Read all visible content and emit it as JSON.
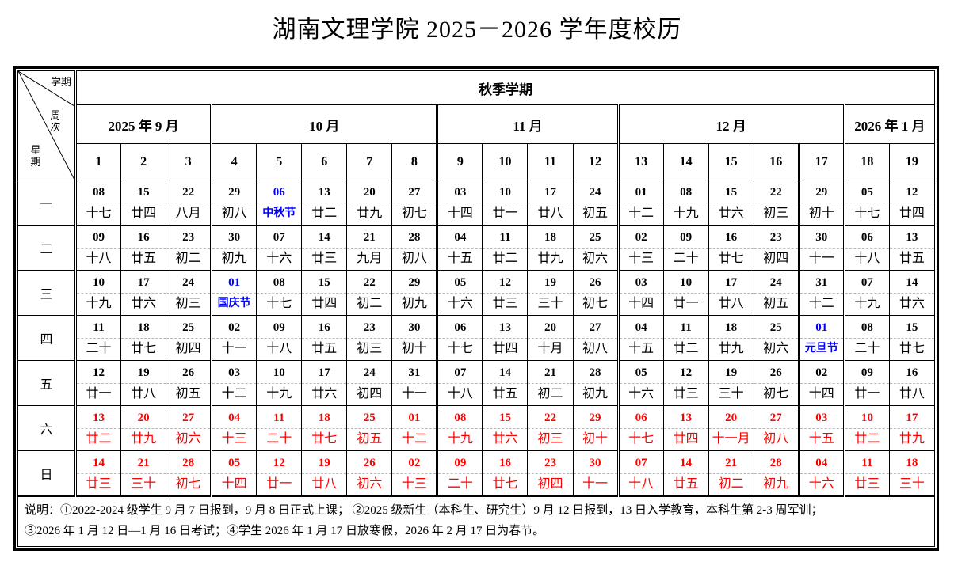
{
  "page": {
    "title": "湖南文理学院 2025－2026 学年度校历"
  },
  "colors": {
    "holiday_blue": "#0000ff",
    "weekend_red": "#ff0000",
    "ink": "#000000"
  },
  "table": {
    "corner": {
      "semester": "学期",
      "week": "周次",
      "weekday": "星期"
    },
    "semester_header": "秋季学期",
    "months": [
      {
        "label": "2025 年 9 月",
        "span": 3
      },
      {
        "label": "10 月",
        "span": 5
      },
      {
        "label": "11 月",
        "span": 4
      },
      {
        "label": "12 月",
        "span": 5
      },
      {
        "label": "2026 年 1 月",
        "span": 2
      }
    ],
    "weeks": [
      "1",
      "2",
      "3",
      "4",
      "5",
      "6",
      "7",
      "8",
      "9",
      "10",
      "11",
      "12",
      "13",
      "14",
      "15",
      "16",
      "17",
      "18",
      "19"
    ],
    "double_border_before_weeks": [
      1,
      4,
      9,
      13,
      17,
      18
    ],
    "day_rows": [
      {
        "label": "一",
        "weekend": false,
        "cells": [
          [
            "08",
            "十七"
          ],
          [
            "15",
            "廿四"
          ],
          [
            "22",
            "八月"
          ],
          [
            "29",
            "初八"
          ],
          [
            "06",
            "中秋节",
            "h"
          ],
          [
            "13",
            "廿二"
          ],
          [
            "20",
            "廿九"
          ],
          [
            "27",
            "初七"
          ],
          [
            "03",
            "十四"
          ],
          [
            "10",
            "廿一"
          ],
          [
            "17",
            "廿八"
          ],
          [
            "24",
            "初五"
          ],
          [
            "01",
            "十二"
          ],
          [
            "08",
            "十九"
          ],
          [
            "15",
            "廿六"
          ],
          [
            "22",
            "初三"
          ],
          [
            "29",
            "初十"
          ],
          [
            "05",
            "十七"
          ],
          [
            "12",
            "廿四"
          ]
        ]
      },
      {
        "label": "二",
        "weekend": false,
        "cells": [
          [
            "09",
            "十八"
          ],
          [
            "16",
            "廿五"
          ],
          [
            "23",
            "初二"
          ],
          [
            "30",
            "初九"
          ],
          [
            "07",
            "十六"
          ],
          [
            "14",
            "廿三"
          ],
          [
            "21",
            "九月"
          ],
          [
            "28",
            "初八"
          ],
          [
            "04",
            "十五"
          ],
          [
            "11",
            "廿二"
          ],
          [
            "18",
            "廿九"
          ],
          [
            "25",
            "初六"
          ],
          [
            "02",
            "十三"
          ],
          [
            "09",
            "二十"
          ],
          [
            "16",
            "廿七"
          ],
          [
            "23",
            "初四"
          ],
          [
            "30",
            "十一"
          ],
          [
            "06",
            "十八"
          ],
          [
            "13",
            "廿五"
          ]
        ]
      },
      {
        "label": "三",
        "weekend": false,
        "cells": [
          [
            "10",
            "十九"
          ],
          [
            "17",
            "廿六"
          ],
          [
            "24",
            "初三"
          ],
          [
            "01",
            "国庆节",
            "h"
          ],
          [
            "08",
            "十七"
          ],
          [
            "15",
            "廿四"
          ],
          [
            "22",
            "初二"
          ],
          [
            "29",
            "初九"
          ],
          [
            "05",
            "十六"
          ],
          [
            "12",
            "廿三"
          ],
          [
            "19",
            "三十"
          ],
          [
            "26",
            "初七"
          ],
          [
            "03",
            "十四"
          ],
          [
            "10",
            "廿一"
          ],
          [
            "17",
            "廿八"
          ],
          [
            "24",
            "初五"
          ],
          [
            "31",
            "十二"
          ],
          [
            "07",
            "十九"
          ],
          [
            "14",
            "廿六"
          ]
        ]
      },
      {
        "label": "四",
        "weekend": false,
        "cells": [
          [
            "11",
            "二十"
          ],
          [
            "18",
            "廿七"
          ],
          [
            "25",
            "初四"
          ],
          [
            "02",
            "十一"
          ],
          [
            "09",
            "十八"
          ],
          [
            "16",
            "廿五"
          ],
          [
            "23",
            "初三"
          ],
          [
            "30",
            "初十"
          ],
          [
            "06",
            "十七"
          ],
          [
            "13",
            "廿四"
          ],
          [
            "20",
            "十月"
          ],
          [
            "27",
            "初八"
          ],
          [
            "04",
            "十五"
          ],
          [
            "11",
            "廿二"
          ],
          [
            "18",
            "廿九"
          ],
          [
            "25",
            "初六"
          ],
          [
            "01",
            "元旦节",
            "h"
          ],
          [
            "08",
            "二十"
          ],
          [
            "15",
            "廿七"
          ]
        ]
      },
      {
        "label": "五",
        "weekend": false,
        "cells": [
          [
            "12",
            "廿一"
          ],
          [
            "19",
            "廿八"
          ],
          [
            "26",
            "初五"
          ],
          [
            "03",
            "十二"
          ],
          [
            "10",
            "十九"
          ],
          [
            "17",
            "廿六"
          ],
          [
            "24",
            "初四"
          ],
          [
            "31",
            "十一"
          ],
          [
            "07",
            "十八"
          ],
          [
            "14",
            "廿五"
          ],
          [
            "21",
            "初二"
          ],
          [
            "28",
            "初九"
          ],
          [
            "05",
            "十六"
          ],
          [
            "12",
            "廿三"
          ],
          [
            "19",
            "三十"
          ],
          [
            "26",
            "初七"
          ],
          [
            "02",
            "十四"
          ],
          [
            "09",
            "廿一"
          ],
          [
            "16",
            "廿八"
          ]
        ]
      },
      {
        "label": "六",
        "weekend": true,
        "cells": [
          [
            "13",
            "廿二"
          ],
          [
            "20",
            "廿九"
          ],
          [
            "27",
            "初六"
          ],
          [
            "04",
            "十三"
          ],
          [
            "11",
            "二十"
          ],
          [
            "18",
            "廿七"
          ],
          [
            "25",
            "初五"
          ],
          [
            "01",
            "十二"
          ],
          [
            "08",
            "十九"
          ],
          [
            "15",
            "廿六"
          ],
          [
            "22",
            "初三"
          ],
          [
            "29",
            "初十"
          ],
          [
            "06",
            "十七"
          ],
          [
            "13",
            "廿四"
          ],
          [
            "20",
            "十一月"
          ],
          [
            "27",
            "初八"
          ],
          [
            "03",
            "十五"
          ],
          [
            "10",
            "廿二"
          ],
          [
            "17",
            "廿九"
          ]
        ]
      },
      {
        "label": "日",
        "weekend": true,
        "cells": [
          [
            "14",
            "廿三"
          ],
          [
            "21",
            "三十"
          ],
          [
            "28",
            "初七"
          ],
          [
            "05",
            "十四"
          ],
          [
            "12",
            "廿一"
          ],
          [
            "19",
            "廿八"
          ],
          [
            "26",
            "初六"
          ],
          [
            "02",
            "十三"
          ],
          [
            "09",
            "二十"
          ],
          [
            "16",
            "廿七"
          ],
          [
            "23",
            "初四"
          ],
          [
            "30",
            "十一"
          ],
          [
            "07",
            "十八"
          ],
          [
            "14",
            "廿五"
          ],
          [
            "21",
            "初二"
          ],
          [
            "28",
            "初九"
          ],
          [
            "04",
            "十六"
          ],
          [
            "11",
            "廿三"
          ],
          [
            "18",
            "三十"
          ]
        ]
      }
    ],
    "notes": [
      "说明：①2022-2024 级学生 9 月 7 日报到，9 月 8 日正式上课；  ②2025 级新生（本科生、研究生）9 月 12 日报到，13 日入学教育，本科生第 2-3 周军训；",
      "③2026 年 1 月 12 日—1 月 16 日考试；④学生 2026 年 1 月 17 日放寒假，2026 年 2 月 17 日为春节。"
    ]
  }
}
